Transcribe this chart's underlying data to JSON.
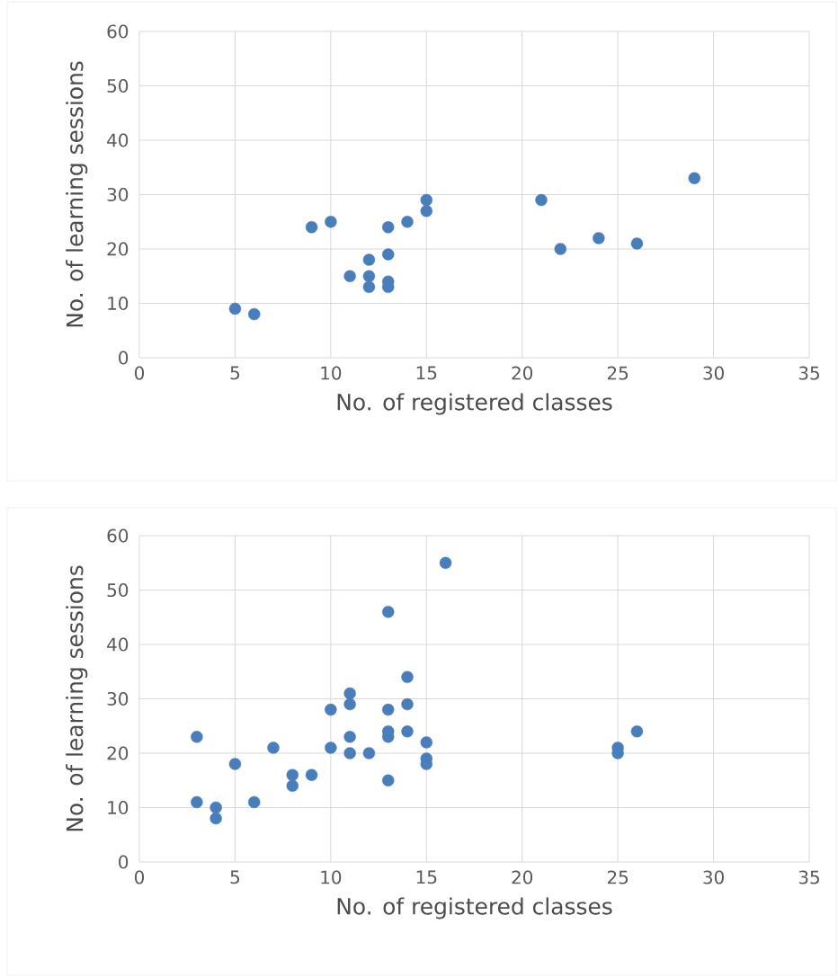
{
  "chart_data": [
    {
      "type": "scatter",
      "xlabel": "No. of registered classes",
      "ylabel": "No. of learning sessions",
      "color": "#4a7ebb",
      "marker": "circle",
      "grid": true,
      "xlim": [
        0,
        35
      ],
      "ylim": [
        0,
        60
      ],
      "xticks": [
        0,
        5,
        10,
        15,
        20,
        25,
        30,
        35
      ],
      "yticks": [
        0,
        10,
        20,
        30,
        40,
        50,
        60
      ],
      "x": [
        5,
        6,
        9,
        10,
        11,
        12,
        12,
        12,
        13,
        13,
        13,
        13,
        14,
        15,
        15,
        21,
        22,
        24,
        26,
        29
      ],
      "values": [
        9,
        8,
        24,
        25,
        15,
        18,
        15,
        13,
        24,
        19,
        14,
        13,
        25,
        29,
        27,
        29,
        20,
        22,
        21,
        33
      ]
    },
    {
      "type": "scatter",
      "xlabel": "No. of registered classes",
      "ylabel": "No. of learning sessions",
      "color": "#4a7ebb",
      "marker": "circle",
      "grid": true,
      "xlim": [
        0,
        35
      ],
      "ylim": [
        0,
        60
      ],
      "xticks": [
        0,
        5,
        10,
        15,
        20,
        25,
        30,
        35
      ],
      "yticks": [
        0,
        10,
        20,
        30,
        40,
        50,
        60
      ],
      "x": [
        3,
        3,
        4,
        4,
        5,
        6,
        7,
        8,
        8,
        9,
        10,
        10,
        11,
        11,
        11,
        11,
        12,
        13,
        13,
        13,
        13,
        13,
        14,
        14,
        14,
        15,
        15,
        15,
        16,
        25,
        25,
        26
      ],
      "values": [
        23,
        11,
        10,
        8,
        18,
        11,
        21,
        16,
        14,
        16,
        28,
        21,
        31,
        29,
        23,
        20,
        20,
        46,
        28,
        24,
        23,
        15,
        34,
        29,
        24,
        22,
        19,
        18,
        55,
        21,
        20,
        24
      ]
    }
  ]
}
